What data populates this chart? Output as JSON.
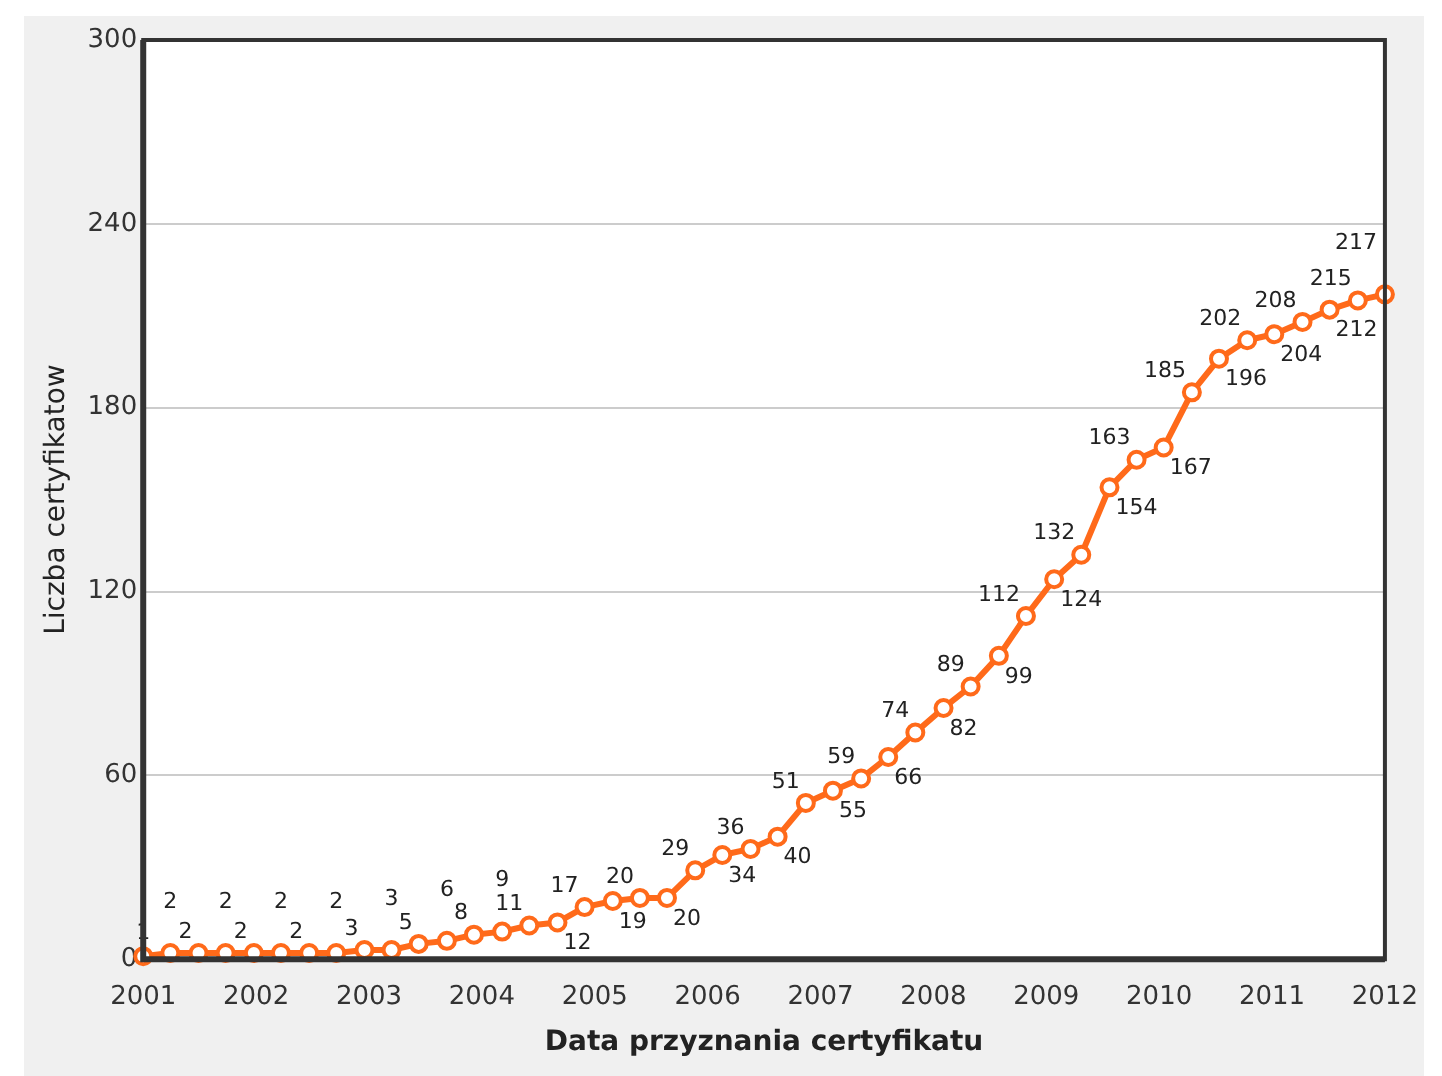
{
  "chart_data": {
    "type": "line",
    "xlabel": "Data przyznania certyfikatu",
    "ylabel": "Liczba certyfikatow",
    "x": [
      2001.0,
      2001.24,
      2001.49,
      2001.73,
      2001.98,
      2002.22,
      2002.47,
      2002.71,
      2002.96,
      2003.2,
      2003.44,
      2003.69,
      2003.93,
      2004.18,
      2004.42,
      2004.67,
      2004.91,
      2005.16,
      2005.4,
      2005.64,
      2005.89,
      2006.13,
      2006.38,
      2006.62,
      2006.87,
      2007.11,
      2007.36,
      2007.6,
      2007.84,
      2008.09,
      2008.33,
      2008.58,
      2008.82,
      2009.07,
      2009.31,
      2009.56,
      2009.8,
      2010.04,
      2010.29,
      2010.53,
      2010.78,
      2011.02,
      2011.27,
      2011.51,
      2011.76,
      2012
    ],
    "series": [
      {
        "color": "#ff6a1a",
        "values": [
          1,
          2,
          2,
          2,
          2,
          2,
          2,
          2,
          3,
          3,
          5,
          6,
          8,
          9,
          11,
          12,
          17,
          19,
          20,
          20,
          29,
          34,
          36,
          40,
          51,
          55,
          59,
          66,
          74,
          82,
          89,
          99,
          112,
          124,
          132,
          154,
          163,
          167,
          185,
          196,
          202,
          204,
          208,
          212,
          215,
          217
        ]
      }
    ],
    "xlim": [
      2001,
      2012
    ],
    "xticks": [
      2001,
      2002,
      2003,
      2004,
      2005,
      2006,
      2007,
      2008,
      2009,
      2010,
      2011,
      2012
    ],
    "ylim": [
      0,
      300
    ],
    "yticks": [
      0,
      60,
      120,
      180,
      240,
      300
    ],
    "grid": "y",
    "legend": false,
    "marker": "circle",
    "line_style": "solid",
    "data_labels": true
  }
}
